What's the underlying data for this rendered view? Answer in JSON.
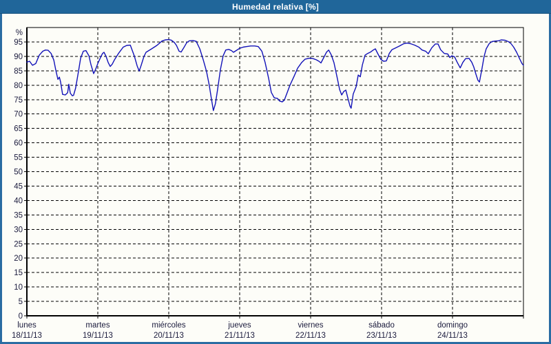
{
  "title": "Humedad relativa [%]",
  "colors": {
    "titlebar_bg": "#20669a",
    "titlebar_text": "#ffffff",
    "frame": "#2a6ca2",
    "plot_bg": "#fdfdf8",
    "grid": "#000000",
    "axis": "#000000",
    "axis_text": "#1a1a3c",
    "line": "#1111b8"
  },
  "chart_data": {
    "type": "line",
    "title": "Humedad relativa [%]",
    "legend": "none",
    "grid": "dashed",
    "y_axis": {
      "unit": "%",
      "min": 0,
      "max": 100,
      "tick_labels": [
        0,
        5,
        10,
        15,
        20,
        25,
        30,
        35,
        40,
        45,
        50,
        55,
        60,
        65,
        70,
        75,
        80,
        85,
        90,
        95
      ]
    },
    "x_axis": {
      "total_hours": 168,
      "hours_per_day": 24,
      "days": [
        {
          "name": "lunes",
          "date": "18/11/13"
        },
        {
          "name": "martes",
          "date": "19/11/13"
        },
        {
          "name": "miércoles",
          "date": "20/11/13"
        },
        {
          "name": "jueves",
          "date": "21/11/13"
        },
        {
          "name": "viernes",
          "date": "22/11/13"
        },
        {
          "name": "sábado",
          "date": "23/11/13"
        },
        {
          "name": "domingo",
          "date": "24/11/13"
        }
      ]
    },
    "series": [
      {
        "name": "Humedad relativa",
        "unit": "%",
        "points": [
          [
            0,
            88
          ],
          [
            0.9,
            88.3
          ],
          [
            1.9,
            86.9
          ],
          [
            3,
            87.5
          ],
          [
            4.2,
            90.4
          ],
          [
            5.4,
            91.8
          ],
          [
            6.3,
            92.2
          ],
          [
            7.2,
            92.1
          ],
          [
            8.2,
            91
          ],
          [
            9.1,
            88.7
          ],
          [
            9.8,
            85.1
          ],
          [
            10.5,
            82
          ],
          [
            11,
            82.8
          ],
          [
            11.4,
            81.2
          ],
          [
            12.1,
            76.8
          ],
          [
            13,
            76.6
          ],
          [
            13.8,
            77.4
          ],
          [
            14.2,
            80.3
          ],
          [
            14.7,
            77.2
          ],
          [
            15.4,
            76.3
          ],
          [
            15.8,
            76.5
          ],
          [
            16.5,
            79
          ],
          [
            17.5,
            85
          ],
          [
            18.2,
            89.4
          ],
          [
            19.1,
            91.8
          ],
          [
            20,
            92
          ],
          [
            21,
            90.2
          ],
          [
            21.7,
            87.1
          ],
          [
            22.6,
            84
          ],
          [
            23.3,
            85.6
          ],
          [
            24,
            87.5
          ],
          [
            24.9,
            89.6
          ],
          [
            25.6,
            91
          ],
          [
            26.1,
            91.4
          ],
          [
            26.8,
            90
          ],
          [
            27.5,
            87.9
          ],
          [
            28.2,
            86.5
          ],
          [
            28.9,
            87.3
          ],
          [
            29.6,
            88.7
          ],
          [
            31,
            91
          ],
          [
            32.6,
            93.2
          ],
          [
            33.8,
            93.8
          ],
          [
            35,
            93.9
          ],
          [
            36.4,
            90
          ],
          [
            37.3,
            86.7
          ],
          [
            38,
            84.9
          ],
          [
            38.7,
            87
          ],
          [
            39.6,
            89.9
          ],
          [
            40.3,
            91.4
          ],
          [
            42.2,
            92.6
          ],
          [
            44,
            93.8
          ],
          [
            45.7,
            95.3
          ],
          [
            46.8,
            95.7
          ],
          [
            48,
            95.8
          ],
          [
            48.9,
            95.6
          ],
          [
            49.9,
            94.8
          ],
          [
            50.6,
            93.8
          ],
          [
            51.5,
            91.8
          ],
          [
            52.2,
            91.5
          ],
          [
            53.1,
            93
          ],
          [
            54.1,
            94.8
          ],
          [
            55,
            95.4
          ],
          [
            56.2,
            95.5
          ],
          [
            57.3,
            95.2
          ],
          [
            58.5,
            92.6
          ],
          [
            59.7,
            88.7
          ],
          [
            60.8,
            84.7
          ],
          [
            61.7,
            80
          ],
          [
            62.4,
            75.5
          ],
          [
            63.1,
            71.2
          ],
          [
            63.8,
            73.6
          ],
          [
            64.5,
            78.3
          ],
          [
            65.5,
            85.5
          ],
          [
            66.4,
            90.2
          ],
          [
            67.3,
            92.2
          ],
          [
            68.3,
            92.4
          ],
          [
            69.2,
            92
          ],
          [
            69.9,
            91.4
          ],
          [
            70.8,
            92
          ],
          [
            72,
            92.8
          ],
          [
            73.2,
            93.2
          ],
          [
            74.3,
            93.4
          ],
          [
            75.7,
            93.6
          ],
          [
            77.1,
            93.6
          ],
          [
            78.3,
            93.4
          ],
          [
            79.5,
            91.8
          ],
          [
            80.6,
            87.9
          ],
          [
            81.8,
            82.3
          ],
          [
            82.7,
            77.5
          ],
          [
            83.7,
            75.6
          ],
          [
            84.8,
            75.4
          ],
          [
            85.5,
            74.5
          ],
          [
            86.4,
            74.2
          ],
          [
            87.1,
            74.8
          ],
          [
            88.1,
            77.5
          ],
          [
            89,
            80
          ],
          [
            90.4,
            83.1
          ],
          [
            91.6,
            85.9
          ],
          [
            93,
            87.9
          ],
          [
            94.1,
            89
          ],
          [
            95.3,
            89.3
          ],
          [
            96,
            89.4
          ],
          [
            96.9,
            89.2
          ],
          [
            97.9,
            88.8
          ],
          [
            98.8,
            88.3
          ],
          [
            99.5,
            87.7
          ],
          [
            100.4,
            89.5
          ],
          [
            101.4,
            91.5
          ],
          [
            102.1,
            92.2
          ],
          [
            103,
            90.5
          ],
          [
            103.9,
            87.8
          ],
          [
            104.9,
            83
          ],
          [
            105.8,
            78.5
          ],
          [
            106.5,
            76.6
          ],
          [
            107.2,
            77.8
          ],
          [
            107.9,
            78.3
          ],
          [
            108.6,
            75.5
          ],
          [
            109.3,
            72.8
          ],
          [
            109.7,
            72
          ],
          [
            110.4,
            76.9
          ],
          [
            111.4,
            79.5
          ],
          [
            112.1,
            83.5
          ],
          [
            112.8,
            82.9
          ],
          [
            113.5,
            87
          ],
          [
            114.4,
            90.4
          ],
          [
            115.3,
            91
          ],
          [
            116.3,
            91.5
          ],
          [
            117.2,
            92.2
          ],
          [
            117.9,
            92.6
          ],
          [
            118.8,
            90.8
          ],
          [
            119.8,
            88.9
          ],
          [
            120.7,
            88.3
          ],
          [
            121.6,
            88.4
          ],
          [
            122.6,
            91
          ],
          [
            123.5,
            92.3
          ],
          [
            124.7,
            92.9
          ],
          [
            126.1,
            93.6
          ],
          [
            127.5,
            94.4
          ],
          [
            128.6,
            94.6
          ],
          [
            129.8,
            94.4
          ],
          [
            131.2,
            93.9
          ],
          [
            132.6,
            93.2
          ],
          [
            133.7,
            92.2
          ],
          [
            134.9,
            91.8
          ],
          [
            135.8,
            90.9
          ],
          [
            137,
            93
          ],
          [
            138.2,
            94.3
          ],
          [
            139.1,
            94.3
          ],
          [
            140,
            92.3
          ],
          [
            141.2,
            91
          ],
          [
            142.4,
            90.8
          ],
          [
            143.1,
            89.6
          ],
          [
            143.8,
            90.2
          ],
          [
            144.7,
            89.8
          ],
          [
            145.6,
            87.9
          ],
          [
            146.6,
            86
          ],
          [
            147.5,
            87.9
          ],
          [
            148.4,
            89.2
          ],
          [
            149.6,
            89.3
          ],
          [
            150.5,
            88
          ],
          [
            151.2,
            86.3
          ],
          [
            151.9,
            83.9
          ],
          [
            152.6,
            81.7
          ],
          [
            153.1,
            81.1
          ],
          [
            154,
            85.9
          ],
          [
            154.7,
            90
          ],
          [
            155.4,
            92.6
          ],
          [
            156.4,
            94.4
          ],
          [
            157.3,
            95.1
          ],
          [
            158.4,
            95.3
          ],
          [
            159.6,
            95.4
          ],
          [
            160.5,
            95.7
          ],
          [
            161.7,
            95.6
          ],
          [
            162.9,
            95.1
          ],
          [
            163.8,
            94.4
          ],
          [
            164.7,
            93.2
          ],
          [
            165.7,
            91.4
          ],
          [
            166.6,
            89.4
          ],
          [
            167.5,
            87.5
          ],
          [
            168,
            86.9
          ]
        ]
      }
    ]
  }
}
